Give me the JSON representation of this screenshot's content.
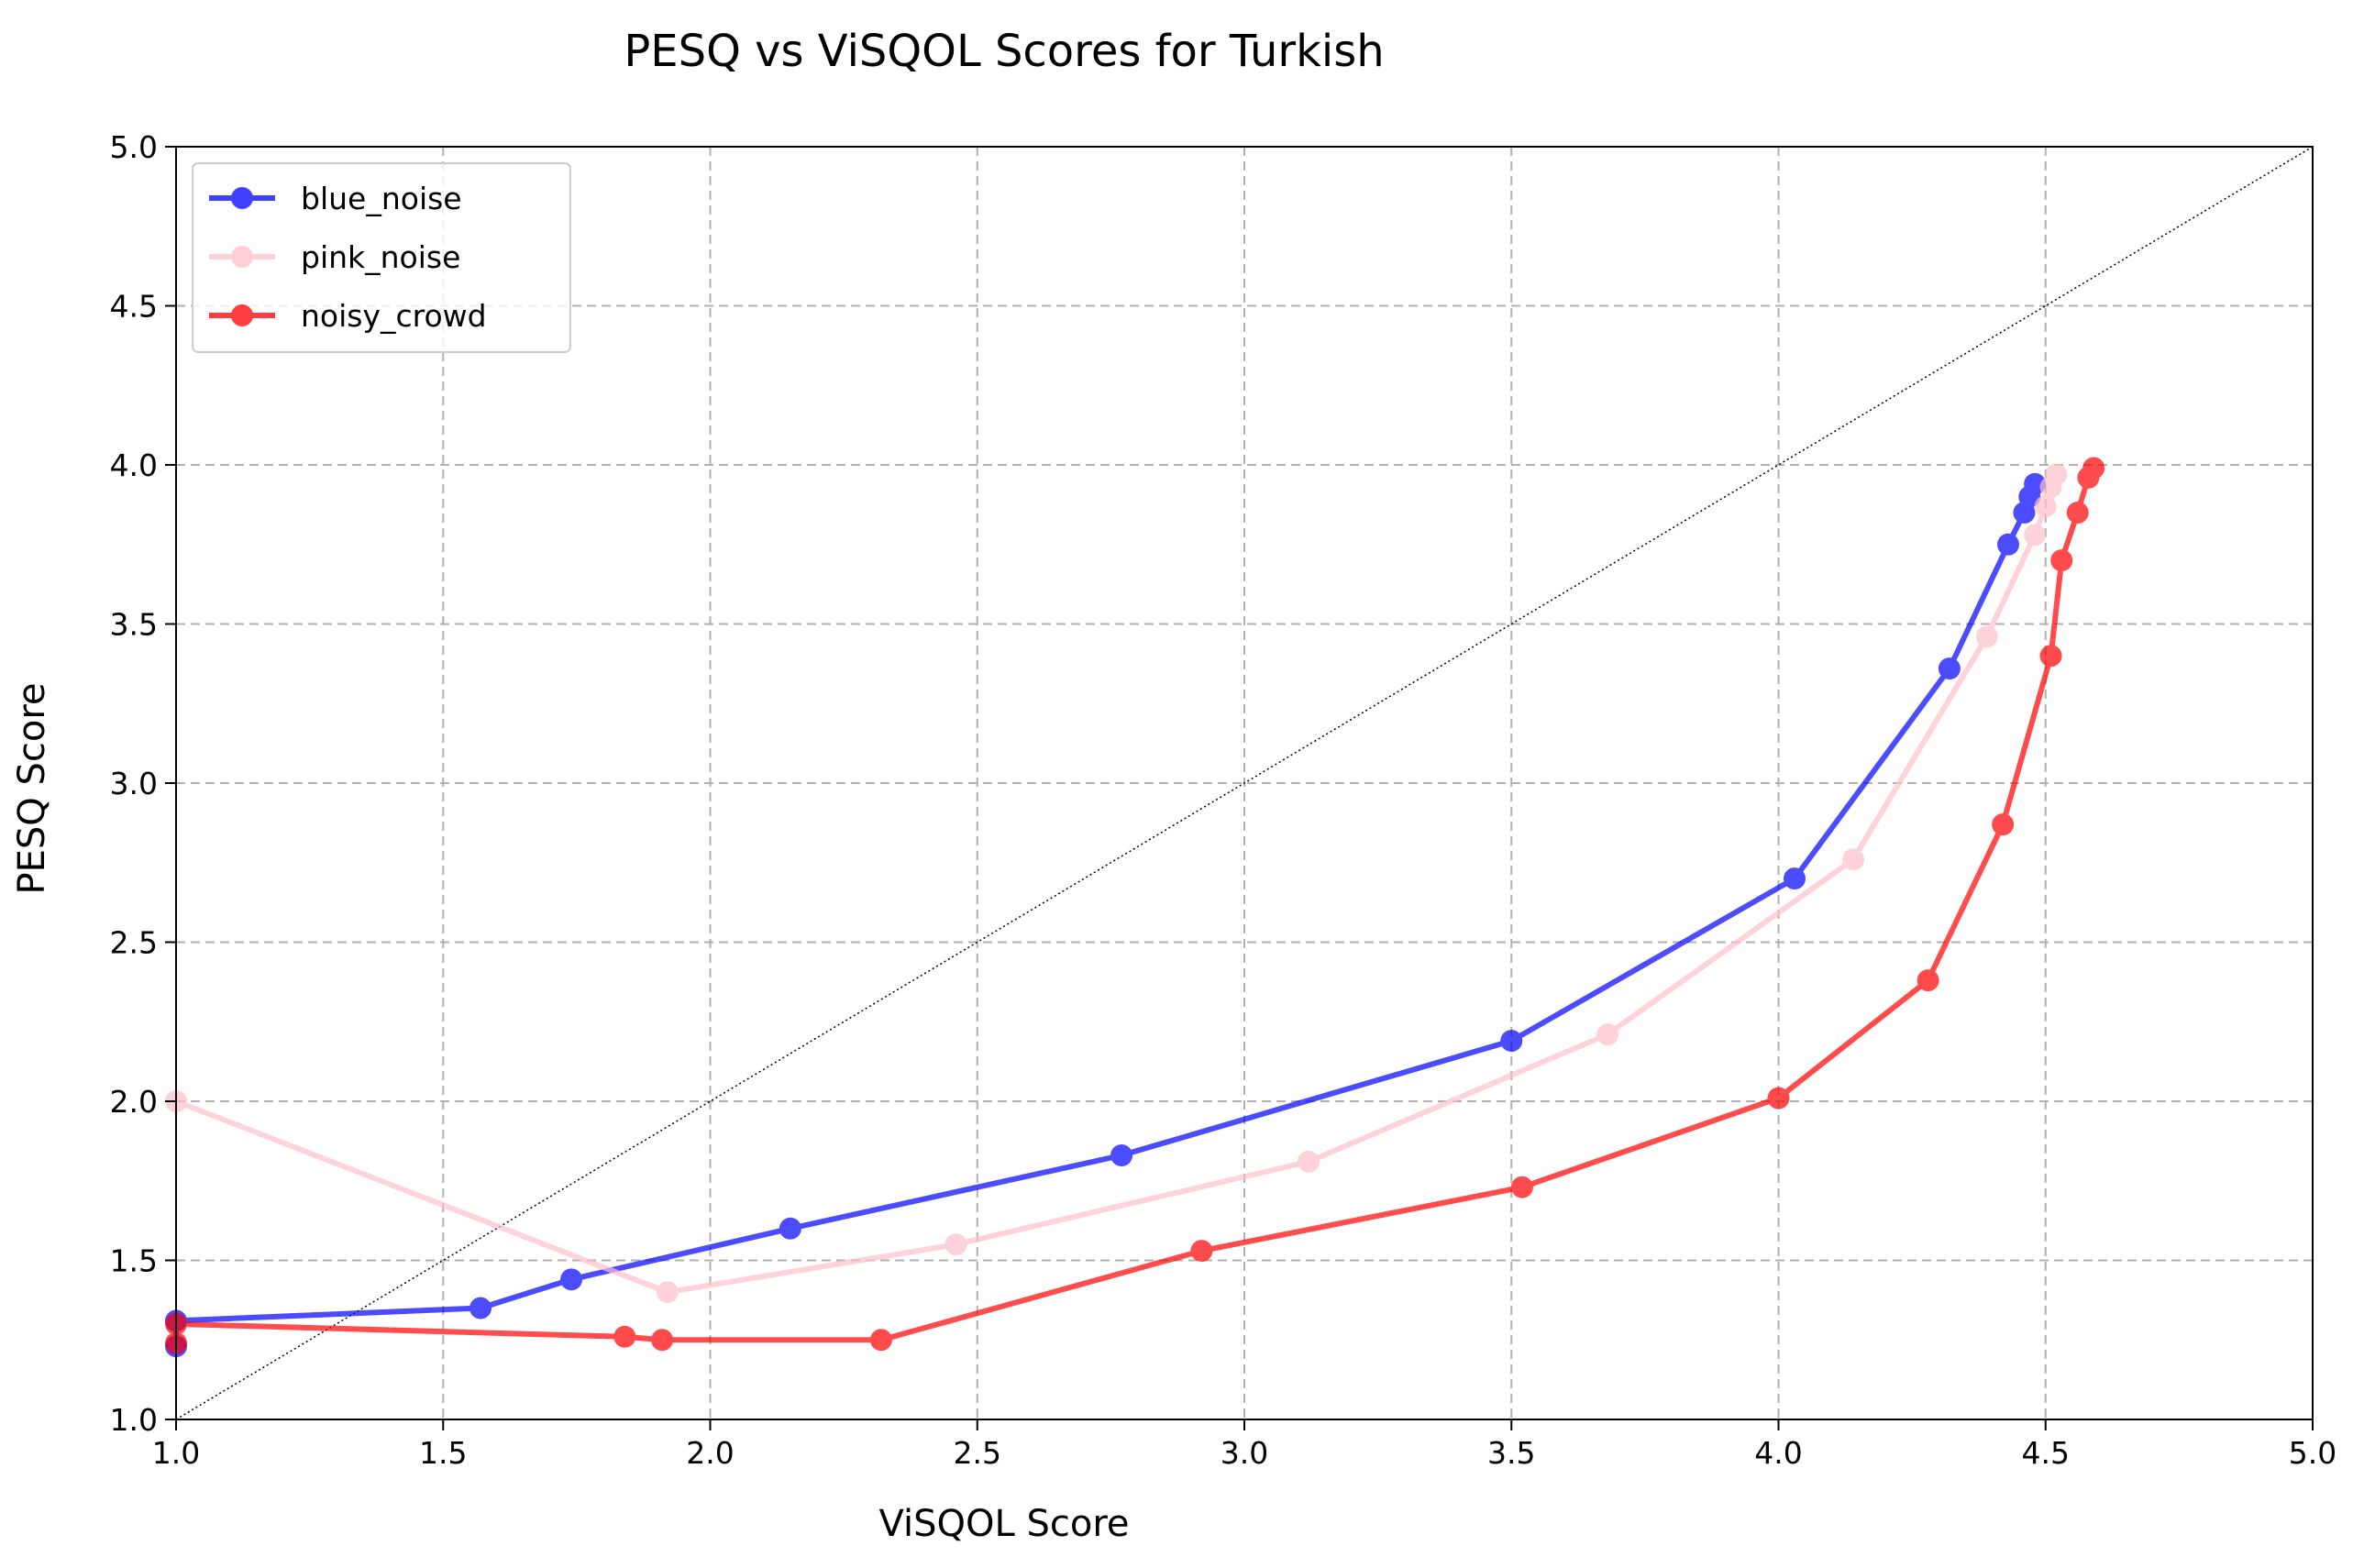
{
  "chart_data": {
    "type": "line",
    "title": "PESQ vs ViSQOL Scores for Turkish",
    "xlabel": "ViSQOL Score",
    "ylabel": "PESQ Score",
    "xlim": [
      1.0,
      5.0
    ],
    "ylim": [
      1.0,
      5.0
    ],
    "xticks": [
      "1.0",
      "1.5",
      "2.0",
      "2.5",
      "3.0",
      "3.5",
      "4.0",
      "4.5",
      "5.0"
    ],
    "yticks": [
      "1.0",
      "1.5",
      "2.0",
      "2.5",
      "3.0",
      "3.5",
      "4.0",
      "4.5",
      "5.0"
    ],
    "grid": true,
    "legend_position": "top-left",
    "reference_line": {
      "style": "dotted",
      "color": "#000000",
      "from": [
        1.0,
        1.0
      ],
      "to": [
        5.0,
        5.0
      ]
    },
    "series": [
      {
        "name": "blue_noise",
        "color": "#0000ff",
        "points": [
          [
            1.0,
            1.23
          ],
          [
            1.0,
            1.31
          ],
          [
            1.57,
            1.35
          ],
          [
            1.74,
            1.44
          ],
          [
            2.15,
            1.6
          ],
          [
            2.77,
            1.83
          ],
          [
            3.5,
            2.19
          ],
          [
            4.03,
            2.7
          ],
          [
            4.32,
            3.36
          ],
          [
            4.43,
            3.75
          ],
          [
            4.46,
            3.85
          ],
          [
            4.47,
            3.9
          ],
          [
            4.48,
            3.94
          ]
        ]
      },
      {
        "name": "pink_noise",
        "color": "#ffc0cb",
        "points": [
          [
            1.0,
            2.0
          ],
          [
            1.92,
            1.4
          ],
          [
            2.46,
            1.55
          ],
          [
            3.12,
            1.81
          ],
          [
            3.68,
            2.21
          ],
          [
            4.14,
            2.76
          ],
          [
            4.39,
            3.46
          ],
          [
            4.48,
            3.78
          ],
          [
            4.5,
            3.87
          ],
          [
            4.51,
            3.93
          ],
          [
            4.52,
            3.97
          ]
        ]
      },
      {
        "name": "noisy_crowd",
        "color": "#ff0000",
        "points": [
          [
            1.0,
            1.24
          ],
          [
            1.0,
            1.3
          ],
          [
            1.84,
            1.26
          ],
          [
            1.91,
            1.25
          ],
          [
            2.32,
            1.25
          ],
          [
            2.92,
            1.53
          ],
          [
            3.52,
            1.73
          ],
          [
            4.0,
            2.01
          ],
          [
            4.28,
            2.38
          ],
          [
            4.42,
            2.87
          ],
          [
            4.51,
            3.4
          ],
          [
            4.53,
            3.7
          ],
          [
            4.56,
            3.85
          ],
          [
            4.58,
            3.96
          ],
          [
            4.59,
            3.99
          ]
        ]
      }
    ]
  }
}
